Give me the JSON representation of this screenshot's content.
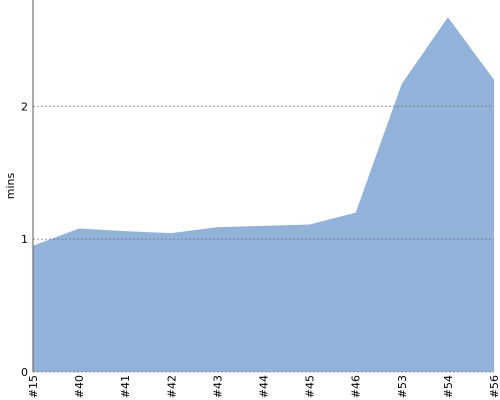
{
  "chart_data": {
    "type": "area",
    "y_label": "mins",
    "categories": [
      "#15",
      "#40",
      "#41",
      "#42",
      "#43",
      "#44",
      "#45",
      "#46",
      "#53",
      "#54",
      "#56"
    ],
    "values": [
      0.95,
      1.08,
      1.06,
      1.045,
      1.09,
      1.1,
      1.11,
      1.2,
      2.17,
      2.67,
      2.2
    ],
    "color": "#92b2da",
    "ylim": [
      0,
      2.8
    ],
    "yticks": [
      0,
      1,
      2
    ],
    "grid": true
  }
}
